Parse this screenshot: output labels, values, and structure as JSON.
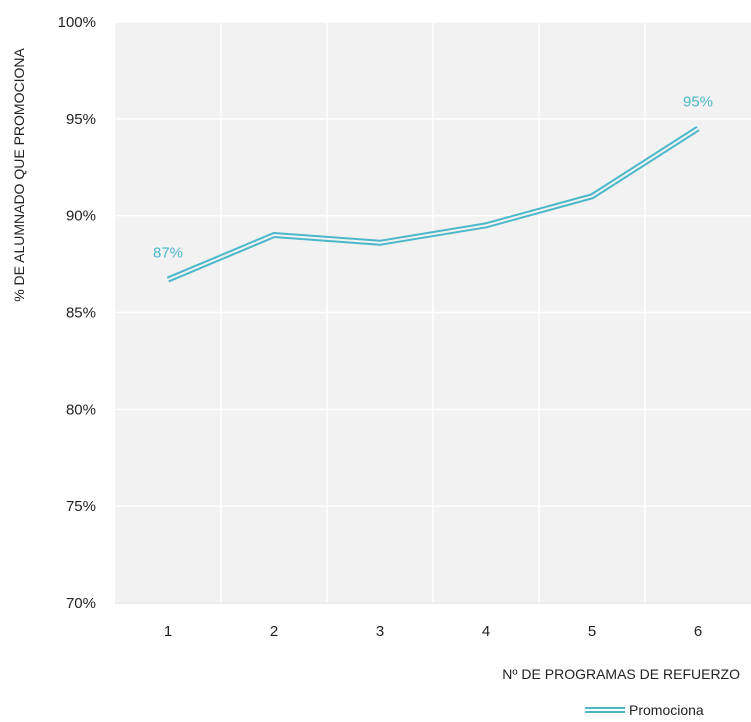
{
  "chart_data": {
    "type": "line",
    "xlabel": "Nº DE PROGRAMAS DE REFUERZO",
    "ylabel": "% DE ALUMNADO QUE PROMOCIONA",
    "x": [
      1,
      2,
      3,
      4,
      5,
      6
    ],
    "x_tick_labels": [
      "1",
      "2",
      "3",
      "4",
      "5",
      "6"
    ],
    "ylim": [
      0.7,
      1.0
    ],
    "y_ticks": [
      0.7,
      0.75,
      0.8,
      0.85,
      0.9,
      0.95,
      1.0
    ],
    "y_tick_labels": [
      "70%",
      "75%",
      "80%",
      "85%",
      "90%",
      "95%",
      "100%"
    ],
    "grid": true,
    "legend_position": "bottom-right",
    "series": [
      {
        "name": "Promociona",
        "color": "#4bb8c9",
        "values": [
          0.867,
          0.89,
          0.886,
          0.895,
          0.91,
          0.945
        ]
      }
    ],
    "data_labels": [
      {
        "index": 0,
        "text": "87%"
      },
      {
        "index": 5,
        "text": "95%"
      }
    ]
  }
}
